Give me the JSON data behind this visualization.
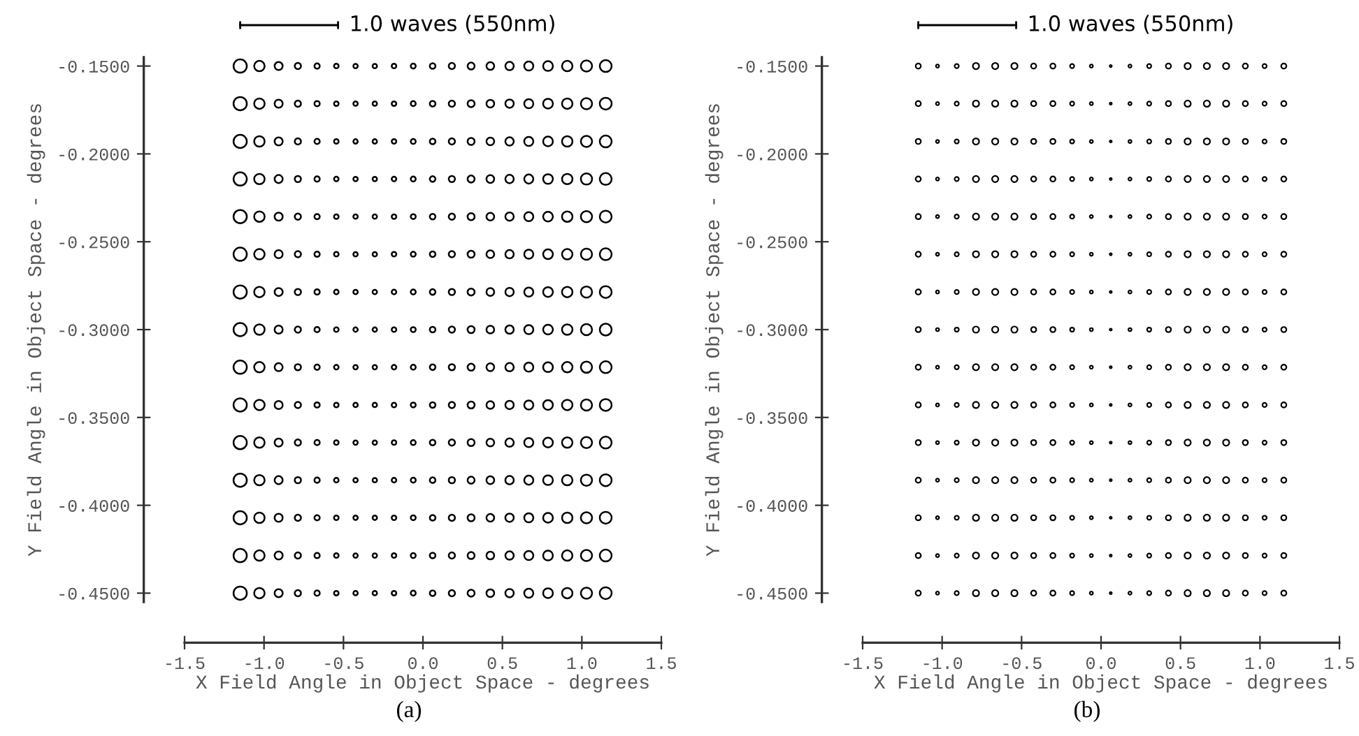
{
  "chart_data": [
    {
      "type": "bubble",
      "xlabel": "X Field Angle in Object Space - degrees",
      "ylabel": "Y Field Angle in Object Space - degrees",
      "annotations": [
        "1.0 waves (550nm)",
        "(a)"
      ],
      "marker": "circle",
      "grid": false,
      "xlim": [
        -1.5,
        1.5
      ],
      "xticks": [
        -1.5,
        {
          "value": -1.0,
          "label": "-1.0"
        },
        -0.5,
        {
          "value": 0.0,
          "label": "0.0"
        },
        0.5,
        {
          "value": 1.0,
          "label": "1.0"
        },
        1.5
      ],
      "ylim": [
        -0.455,
        -0.145
      ],
      "yticks": [
        {
          "value": -0.15,
          "label": "-0.1500"
        },
        {
          "value": -0.2,
          "label": "-0.2000"
        },
        {
          "value": -0.25,
          "label": "-0.2500"
        },
        {
          "value": -0.3,
          "label": "-0.3000"
        },
        {
          "value": -0.35,
          "label": "-0.3500"
        },
        {
          "value": -0.4,
          "label": "-0.4000"
        },
        {
          "value": -0.45,
          "label": "-0.4500"
        }
      ],
      "x": [
        -1.15,
        -1.029,
        -0.908,
        -0.787,
        -0.666,
        -0.545,
        -0.424,
        -0.303,
        -0.182,
        -0.061,
        0.061,
        0.182,
        0.303,
        0.424,
        0.545,
        0.666,
        0.787,
        0.908,
        1.029,
        1.15
      ],
      "series": [
        {
          "color": "#000000",
          "values": [
            -0.15,
            -0.15,
            -0.15,
            -0.15,
            -0.15,
            -0.15,
            -0.15,
            -0.15,
            -0.15,
            -0.15,
            -0.15,
            -0.15,
            -0.15,
            -0.15,
            -0.15,
            -0.15,
            -0.15,
            -0.15,
            -0.15,
            -0.15
          ],
          "sizes": [
            1,
            0.62,
            0.37,
            0.22,
            0.16,
            0.12,
            0.11,
            0.11,
            0.12,
            0.14,
            0.18,
            0.22,
            0.28,
            0.34,
            0.4,
            0.47,
            0.54,
            0.62,
            0.71,
            0.8
          ]
        },
        {
          "color": "#000000",
          "values": [
            -0.1714,
            -0.1714,
            -0.1714,
            -0.1714,
            -0.1714,
            -0.1714,
            -0.1714,
            -0.1714,
            -0.1714,
            -0.1714,
            -0.1714,
            -0.1714,
            -0.1714,
            -0.1714,
            -0.1714,
            -0.1714,
            -0.1714,
            -0.1714,
            -0.1714,
            -0.1714
          ],
          "sizes": [
            1,
            0.62,
            0.37,
            0.22,
            0.16,
            0.12,
            0.11,
            0.11,
            0.12,
            0.14,
            0.18,
            0.22,
            0.28,
            0.34,
            0.4,
            0.47,
            0.54,
            0.62,
            0.71,
            0.8
          ]
        },
        {
          "color": "#000000",
          "values": [
            -0.1929,
            -0.1929,
            -0.1929,
            -0.1929,
            -0.1929,
            -0.1929,
            -0.1929,
            -0.1929,
            -0.1929,
            -0.1929,
            -0.1929,
            -0.1929,
            -0.1929,
            -0.1929,
            -0.1929,
            -0.1929,
            -0.1929,
            -0.1929,
            -0.1929,
            -0.1929
          ],
          "sizes": [
            1,
            0.62,
            0.37,
            0.22,
            0.16,
            0.12,
            0.11,
            0.11,
            0.12,
            0.14,
            0.18,
            0.22,
            0.28,
            0.34,
            0.4,
            0.47,
            0.54,
            0.62,
            0.71,
            0.8
          ]
        },
        {
          "color": "#000000",
          "values": [
            -0.2143,
            -0.2143,
            -0.2143,
            -0.2143,
            -0.2143,
            -0.2143,
            -0.2143,
            -0.2143,
            -0.2143,
            -0.2143,
            -0.2143,
            -0.2143,
            -0.2143,
            -0.2143,
            -0.2143,
            -0.2143,
            -0.2143,
            -0.2143,
            -0.2143,
            -0.2143
          ],
          "sizes": [
            1,
            0.62,
            0.37,
            0.22,
            0.16,
            0.12,
            0.11,
            0.11,
            0.12,
            0.14,
            0.18,
            0.22,
            0.28,
            0.34,
            0.4,
            0.47,
            0.54,
            0.62,
            0.71,
            0.8
          ]
        },
        {
          "color": "#000000",
          "values": [
            -0.2357,
            -0.2357,
            -0.2357,
            -0.2357,
            -0.2357,
            -0.2357,
            -0.2357,
            -0.2357,
            -0.2357,
            -0.2357,
            -0.2357,
            -0.2357,
            -0.2357,
            -0.2357,
            -0.2357,
            -0.2357,
            -0.2357,
            -0.2357,
            -0.2357,
            -0.2357
          ],
          "sizes": [
            1,
            0.62,
            0.37,
            0.22,
            0.16,
            0.12,
            0.11,
            0.11,
            0.12,
            0.14,
            0.18,
            0.22,
            0.28,
            0.34,
            0.4,
            0.47,
            0.54,
            0.62,
            0.71,
            0.8
          ]
        },
        {
          "color": "#000000",
          "values": [
            -0.2571,
            -0.2571,
            -0.2571,
            -0.2571,
            -0.2571,
            -0.2571,
            -0.2571,
            -0.2571,
            -0.2571,
            -0.2571,
            -0.2571,
            -0.2571,
            -0.2571,
            -0.2571,
            -0.2571,
            -0.2571,
            -0.2571,
            -0.2571,
            -0.2571,
            -0.2571
          ],
          "sizes": [
            1,
            0.62,
            0.37,
            0.22,
            0.16,
            0.12,
            0.11,
            0.11,
            0.12,
            0.14,
            0.18,
            0.22,
            0.28,
            0.34,
            0.4,
            0.47,
            0.54,
            0.62,
            0.71,
            0.8
          ]
        },
        {
          "color": "#000000",
          "values": [
            -0.2786,
            -0.2786,
            -0.2786,
            -0.2786,
            -0.2786,
            -0.2786,
            -0.2786,
            -0.2786,
            -0.2786,
            -0.2786,
            -0.2786,
            -0.2786,
            -0.2786,
            -0.2786,
            -0.2786,
            -0.2786,
            -0.2786,
            -0.2786,
            -0.2786,
            -0.2786
          ],
          "sizes": [
            1,
            0.62,
            0.37,
            0.22,
            0.16,
            0.12,
            0.11,
            0.11,
            0.12,
            0.14,
            0.18,
            0.22,
            0.28,
            0.34,
            0.4,
            0.47,
            0.54,
            0.62,
            0.71,
            0.8
          ]
        },
        {
          "color": "#000000",
          "values": [
            -0.3,
            -0.3,
            -0.3,
            -0.3,
            -0.3,
            -0.3,
            -0.3,
            -0.3,
            -0.3,
            -0.3,
            -0.3,
            -0.3,
            -0.3,
            -0.3,
            -0.3,
            -0.3,
            -0.3,
            -0.3,
            -0.3,
            -0.3
          ],
          "sizes": [
            1,
            0.62,
            0.37,
            0.22,
            0.16,
            0.12,
            0.11,
            0.11,
            0.12,
            0.14,
            0.18,
            0.22,
            0.28,
            0.34,
            0.4,
            0.47,
            0.54,
            0.62,
            0.71,
            0.8
          ]
        },
        {
          "color": "#000000",
          "values": [
            -0.3214,
            -0.3214,
            -0.3214,
            -0.3214,
            -0.3214,
            -0.3214,
            -0.3214,
            -0.3214,
            -0.3214,
            -0.3214,
            -0.3214,
            -0.3214,
            -0.3214,
            -0.3214,
            -0.3214,
            -0.3214,
            -0.3214,
            -0.3214,
            -0.3214,
            -0.3214
          ],
          "sizes": [
            1,
            0.62,
            0.37,
            0.22,
            0.16,
            0.12,
            0.11,
            0.11,
            0.12,
            0.14,
            0.18,
            0.22,
            0.28,
            0.34,
            0.4,
            0.47,
            0.54,
            0.62,
            0.71,
            0.8
          ]
        },
        {
          "color": "#000000",
          "values": [
            -0.3429,
            -0.3429,
            -0.3429,
            -0.3429,
            -0.3429,
            -0.3429,
            -0.3429,
            -0.3429,
            -0.3429,
            -0.3429,
            -0.3429,
            -0.3429,
            -0.3429,
            -0.3429,
            -0.3429,
            -0.3429,
            -0.3429,
            -0.3429,
            -0.3429,
            -0.3429
          ],
          "sizes": [
            1,
            0.62,
            0.37,
            0.22,
            0.16,
            0.12,
            0.11,
            0.11,
            0.12,
            0.14,
            0.18,
            0.22,
            0.28,
            0.34,
            0.4,
            0.47,
            0.54,
            0.62,
            0.71,
            0.8
          ]
        },
        {
          "color": "#000000",
          "values": [
            -0.3643,
            -0.3643,
            -0.3643,
            -0.3643,
            -0.3643,
            -0.3643,
            -0.3643,
            -0.3643,
            -0.3643,
            -0.3643,
            -0.3643,
            -0.3643,
            -0.3643,
            -0.3643,
            -0.3643,
            -0.3643,
            -0.3643,
            -0.3643,
            -0.3643,
            -0.3643
          ],
          "sizes": [
            1,
            0.62,
            0.37,
            0.22,
            0.16,
            0.12,
            0.11,
            0.11,
            0.12,
            0.14,
            0.18,
            0.22,
            0.28,
            0.34,
            0.4,
            0.47,
            0.54,
            0.62,
            0.71,
            0.8
          ]
        },
        {
          "color": "#000000",
          "values": [
            -0.3857,
            -0.3857,
            -0.3857,
            -0.3857,
            -0.3857,
            -0.3857,
            -0.3857,
            -0.3857,
            -0.3857,
            -0.3857,
            -0.3857,
            -0.3857,
            -0.3857,
            -0.3857,
            -0.3857,
            -0.3857,
            -0.3857,
            -0.3857,
            -0.3857,
            -0.3857
          ],
          "sizes": [
            1,
            0.62,
            0.37,
            0.22,
            0.16,
            0.12,
            0.11,
            0.11,
            0.12,
            0.14,
            0.18,
            0.22,
            0.28,
            0.34,
            0.4,
            0.47,
            0.54,
            0.62,
            0.71,
            0.8
          ]
        },
        {
          "color": "#000000",
          "values": [
            -0.4071,
            -0.4071,
            -0.4071,
            -0.4071,
            -0.4071,
            -0.4071,
            -0.4071,
            -0.4071,
            -0.4071,
            -0.4071,
            -0.4071,
            -0.4071,
            -0.4071,
            -0.4071,
            -0.4071,
            -0.4071,
            -0.4071,
            -0.4071,
            -0.4071,
            -0.4071
          ],
          "sizes": [
            1,
            0.62,
            0.37,
            0.22,
            0.16,
            0.12,
            0.11,
            0.11,
            0.12,
            0.14,
            0.18,
            0.22,
            0.28,
            0.34,
            0.4,
            0.47,
            0.54,
            0.62,
            0.71,
            0.8
          ]
        },
        {
          "color": "#000000",
          "values": [
            -0.4286,
            -0.4286,
            -0.4286,
            -0.4286,
            -0.4286,
            -0.4286,
            -0.4286,
            -0.4286,
            -0.4286,
            -0.4286,
            -0.4286,
            -0.4286,
            -0.4286,
            -0.4286,
            -0.4286,
            -0.4286,
            -0.4286,
            -0.4286,
            -0.4286,
            -0.4286
          ],
          "sizes": [
            1,
            0.62,
            0.37,
            0.22,
            0.16,
            0.12,
            0.11,
            0.11,
            0.12,
            0.14,
            0.18,
            0.22,
            0.28,
            0.34,
            0.4,
            0.47,
            0.54,
            0.62,
            0.71,
            0.8
          ]
        },
        {
          "color": "#000000",
          "values": [
            -0.45,
            -0.45,
            -0.45,
            -0.45,
            -0.45,
            -0.45,
            -0.45,
            -0.45,
            -0.45,
            -0.45,
            -0.45,
            -0.45,
            -0.45,
            -0.45,
            -0.45,
            -0.45,
            -0.45,
            -0.45,
            -0.45,
            -0.45
          ],
          "sizes": [
            1,
            0.62,
            0.37,
            0.22,
            0.16,
            0.12,
            0.11,
            0.11,
            0.12,
            0.14,
            0.18,
            0.22,
            0.28,
            0.34,
            0.4,
            0.47,
            0.54,
            0.62,
            0.71,
            0.8
          ]
        }
      ]
    },
    {
      "type": "bubble",
      "xlabel": "X Field Angle in Object Space - degrees",
      "ylabel": "Y Field Angle in Object Space - degrees",
      "annotations": [
        "1.0 waves (550nm)",
        "(b)"
      ],
      "marker": "circle",
      "grid": false,
      "xlim": [
        -1.5,
        1.5
      ],
      "xticks": [
        -1.5,
        {
          "value": -1.0,
          "label": "-1.0"
        },
        -0.5,
        {
          "value": 0.0,
          "label": "0.0"
        },
        0.5,
        {
          "value": 1.0,
          "label": "1.0"
        },
        1.5
      ],
      "ylim": [
        -0.455,
        -0.145
      ],
      "yticks": [
        {
          "value": -0.15,
          "label": "-0.1500"
        },
        {
          "value": -0.2,
          "label": "-0.2000"
        },
        {
          "value": -0.25,
          "label": "-0.2500"
        },
        {
          "value": -0.3,
          "label": "-0.3000"
        },
        {
          "value": -0.35,
          "label": "-0.3500"
        },
        {
          "value": -0.4,
          "label": "-0.4000"
        },
        {
          "value": -0.45,
          "label": "-0.4500"
        }
      ],
      "x": [
        -1.15,
        -1.029,
        -0.908,
        -0.787,
        -0.666,
        -0.545,
        -0.424,
        -0.303,
        -0.182,
        -0.061,
        0.061,
        0.182,
        0.303,
        0.424,
        0.545,
        0.666,
        0.787,
        0.908,
        1.029,
        1.15
      ],
      "series": [
        {
          "color": "#000000",
          "values": [
            -0.15,
            -0.15,
            -0.15,
            -0.15,
            -0.15,
            -0.15,
            -0.15,
            -0.15,
            -0.15,
            -0.15,
            -0.15,
            -0.15,
            -0.15,
            -0.15,
            -0.15,
            -0.15,
            -0.15,
            -0.15,
            -0.15,
            -0.15
          ],
          "sizes": [
            0.69,
            0.25,
            0.44,
            1,
            1,
            1,
            0.69,
            0.69,
            0.44,
            0.25,
            0.11,
            0.25,
            0.44,
            0.69,
            1,
            1,
            1,
            0.69,
            0.44,
            0.69
          ]
        },
        {
          "color": "#000000",
          "values": [
            -0.1714,
            -0.1714,
            -0.1714,
            -0.1714,
            -0.1714,
            -0.1714,
            -0.1714,
            -0.1714,
            -0.1714,
            -0.1714,
            -0.1714,
            -0.1714,
            -0.1714,
            -0.1714,
            -0.1714,
            -0.1714,
            -0.1714,
            -0.1714,
            -0.1714,
            -0.1714
          ],
          "sizes": [
            0.69,
            0.25,
            0.44,
            1,
            1,
            1,
            0.69,
            0.69,
            0.44,
            0.25,
            0.11,
            0.25,
            0.44,
            0.69,
            1,
            1,
            1,
            0.69,
            0.44,
            0.69
          ]
        },
        {
          "color": "#000000",
          "values": [
            -0.1929,
            -0.1929,
            -0.1929,
            -0.1929,
            -0.1929,
            -0.1929,
            -0.1929,
            -0.1929,
            -0.1929,
            -0.1929,
            -0.1929,
            -0.1929,
            -0.1929,
            -0.1929,
            -0.1929,
            -0.1929,
            -0.1929,
            -0.1929,
            -0.1929,
            -0.1929
          ],
          "sizes": [
            0.69,
            0.25,
            0.44,
            1,
            1,
            1,
            0.69,
            0.69,
            0.44,
            0.25,
            0.11,
            0.25,
            0.44,
            0.69,
            1,
            1,
            1,
            0.69,
            0.44,
            0.69
          ]
        },
        {
          "color": "#000000",
          "values": [
            -0.2143,
            -0.2143,
            -0.2143,
            -0.2143,
            -0.2143,
            -0.2143,
            -0.2143,
            -0.2143,
            -0.2143,
            -0.2143,
            -0.2143,
            -0.2143,
            -0.2143,
            -0.2143,
            -0.2143,
            -0.2143,
            -0.2143,
            -0.2143,
            -0.2143,
            -0.2143
          ],
          "sizes": [
            0.69,
            0.25,
            0.44,
            1,
            1,
            1,
            0.69,
            0.69,
            0.44,
            0.25,
            0.11,
            0.25,
            0.44,
            0.69,
            1,
            1,
            1,
            0.69,
            0.44,
            0.69
          ]
        },
        {
          "color": "#000000",
          "values": [
            -0.2357,
            -0.2357,
            -0.2357,
            -0.2357,
            -0.2357,
            -0.2357,
            -0.2357,
            -0.2357,
            -0.2357,
            -0.2357,
            -0.2357,
            -0.2357,
            -0.2357,
            -0.2357,
            -0.2357,
            -0.2357,
            -0.2357,
            -0.2357,
            -0.2357,
            -0.2357
          ],
          "sizes": [
            0.69,
            0.25,
            0.44,
            1,
            1,
            1,
            0.69,
            0.69,
            0.44,
            0.25,
            0.11,
            0.25,
            0.44,
            0.69,
            1,
            1,
            1,
            0.69,
            0.44,
            0.69
          ]
        },
        {
          "color": "#000000",
          "values": [
            -0.2571,
            -0.2571,
            -0.2571,
            -0.2571,
            -0.2571,
            -0.2571,
            -0.2571,
            -0.2571,
            -0.2571,
            -0.2571,
            -0.2571,
            -0.2571,
            -0.2571,
            -0.2571,
            -0.2571,
            -0.2571,
            -0.2571,
            -0.2571,
            -0.2571,
            -0.2571
          ],
          "sizes": [
            0.69,
            0.25,
            0.44,
            1,
            1,
            1,
            0.69,
            0.69,
            0.44,
            0.25,
            0.11,
            0.25,
            0.44,
            0.69,
            1,
            1,
            1,
            0.69,
            0.44,
            0.69
          ]
        },
        {
          "color": "#000000",
          "values": [
            -0.2786,
            -0.2786,
            -0.2786,
            -0.2786,
            -0.2786,
            -0.2786,
            -0.2786,
            -0.2786,
            -0.2786,
            -0.2786,
            -0.2786,
            -0.2786,
            -0.2786,
            -0.2786,
            -0.2786,
            -0.2786,
            -0.2786,
            -0.2786,
            -0.2786,
            -0.2786
          ],
          "sizes": [
            0.69,
            0.25,
            0.44,
            1,
            1,
            1,
            0.69,
            0.69,
            0.44,
            0.25,
            0.11,
            0.25,
            0.44,
            0.69,
            1,
            1,
            1,
            0.69,
            0.44,
            0.69
          ]
        },
        {
          "color": "#000000",
          "values": [
            -0.3,
            -0.3,
            -0.3,
            -0.3,
            -0.3,
            -0.3,
            -0.3,
            -0.3,
            -0.3,
            -0.3,
            -0.3,
            -0.3,
            -0.3,
            -0.3,
            -0.3,
            -0.3,
            -0.3,
            -0.3,
            -0.3,
            -0.3
          ],
          "sizes": [
            0.69,
            0.25,
            0.44,
            1,
            1,
            1,
            0.69,
            0.69,
            0.44,
            0.25,
            0.11,
            0.25,
            0.44,
            0.69,
            1,
            1,
            1,
            0.69,
            0.44,
            0.69
          ]
        },
        {
          "color": "#000000",
          "values": [
            -0.3214,
            -0.3214,
            -0.3214,
            -0.3214,
            -0.3214,
            -0.3214,
            -0.3214,
            -0.3214,
            -0.3214,
            -0.3214,
            -0.3214,
            -0.3214,
            -0.3214,
            -0.3214,
            -0.3214,
            -0.3214,
            -0.3214,
            -0.3214,
            -0.3214,
            -0.3214
          ],
          "sizes": [
            0.69,
            0.25,
            0.44,
            1,
            1,
            1,
            0.69,
            0.69,
            0.44,
            0.25,
            0.11,
            0.25,
            0.44,
            0.69,
            1,
            1,
            1,
            0.69,
            0.44,
            0.69
          ]
        },
        {
          "color": "#000000",
          "values": [
            -0.3429,
            -0.3429,
            -0.3429,
            -0.3429,
            -0.3429,
            -0.3429,
            -0.3429,
            -0.3429,
            -0.3429,
            -0.3429,
            -0.3429,
            -0.3429,
            -0.3429,
            -0.3429,
            -0.3429,
            -0.3429,
            -0.3429,
            -0.3429,
            -0.3429,
            -0.3429
          ],
          "sizes": [
            0.69,
            0.25,
            0.44,
            1,
            1,
            1,
            0.69,
            0.69,
            0.44,
            0.25,
            0.11,
            0.25,
            0.44,
            0.69,
            1,
            1,
            1,
            0.69,
            0.44,
            0.69
          ]
        },
        {
          "color": "#000000",
          "values": [
            -0.3643,
            -0.3643,
            -0.3643,
            -0.3643,
            -0.3643,
            -0.3643,
            -0.3643,
            -0.3643,
            -0.3643,
            -0.3643,
            -0.3643,
            -0.3643,
            -0.3643,
            -0.3643,
            -0.3643,
            -0.3643,
            -0.3643,
            -0.3643,
            -0.3643,
            -0.3643
          ],
          "sizes": [
            0.69,
            0.25,
            0.44,
            1,
            1,
            1,
            0.69,
            0.69,
            0.44,
            0.25,
            0.11,
            0.25,
            0.44,
            0.69,
            1,
            1,
            1,
            0.69,
            0.44,
            0.69
          ]
        },
        {
          "color": "#000000",
          "values": [
            -0.3857,
            -0.3857,
            -0.3857,
            -0.3857,
            -0.3857,
            -0.3857,
            -0.3857,
            -0.3857,
            -0.3857,
            -0.3857,
            -0.3857,
            -0.3857,
            -0.3857,
            -0.3857,
            -0.3857,
            -0.3857,
            -0.3857,
            -0.3857,
            -0.3857,
            -0.3857
          ],
          "sizes": [
            0.69,
            0.25,
            0.44,
            1,
            1,
            1,
            0.69,
            0.69,
            0.44,
            0.25,
            0.11,
            0.25,
            0.44,
            0.69,
            1,
            1,
            1,
            0.69,
            0.44,
            0.69
          ]
        },
        {
          "color": "#000000",
          "values": [
            -0.4071,
            -0.4071,
            -0.4071,
            -0.4071,
            -0.4071,
            -0.4071,
            -0.4071,
            -0.4071,
            -0.4071,
            -0.4071,
            -0.4071,
            -0.4071,
            -0.4071,
            -0.4071,
            -0.4071,
            -0.4071,
            -0.4071,
            -0.4071,
            -0.4071,
            -0.4071
          ],
          "sizes": [
            0.69,
            0.25,
            0.44,
            1,
            1,
            1,
            0.69,
            0.69,
            0.44,
            0.25,
            0.11,
            0.25,
            0.44,
            0.69,
            1,
            1,
            1,
            0.69,
            0.44,
            0.69
          ]
        },
        {
          "color": "#000000",
          "values": [
            -0.4286,
            -0.4286,
            -0.4286,
            -0.4286,
            -0.4286,
            -0.4286,
            -0.4286,
            -0.4286,
            -0.4286,
            -0.4286,
            -0.4286,
            -0.4286,
            -0.4286,
            -0.4286,
            -0.4286,
            -0.4286,
            -0.4286,
            -0.4286,
            -0.4286,
            -0.4286
          ],
          "sizes": [
            0.69,
            0.25,
            0.44,
            1,
            1,
            1,
            0.69,
            0.69,
            0.44,
            0.25,
            0.11,
            0.25,
            0.44,
            0.69,
            1,
            1,
            1,
            0.69,
            0.44,
            0.69
          ]
        },
        {
          "color": "#000000",
          "values": [
            -0.45,
            -0.45,
            -0.45,
            -0.45,
            -0.45,
            -0.45,
            -0.45,
            -0.45,
            -0.45,
            -0.45,
            -0.45,
            -0.45,
            -0.45,
            -0.45,
            -0.45,
            -0.45,
            -0.45,
            -0.45,
            -0.45,
            -0.45
          ],
          "sizes": [
            0.69,
            0.25,
            0.44,
            1,
            1,
            1,
            0.69,
            0.69,
            0.44,
            0.25,
            0.11,
            0.25,
            0.44,
            0.69,
            1,
            1,
            1,
            0.69,
            0.44,
            0.69
          ]
        }
      ]
    }
  ]
}
